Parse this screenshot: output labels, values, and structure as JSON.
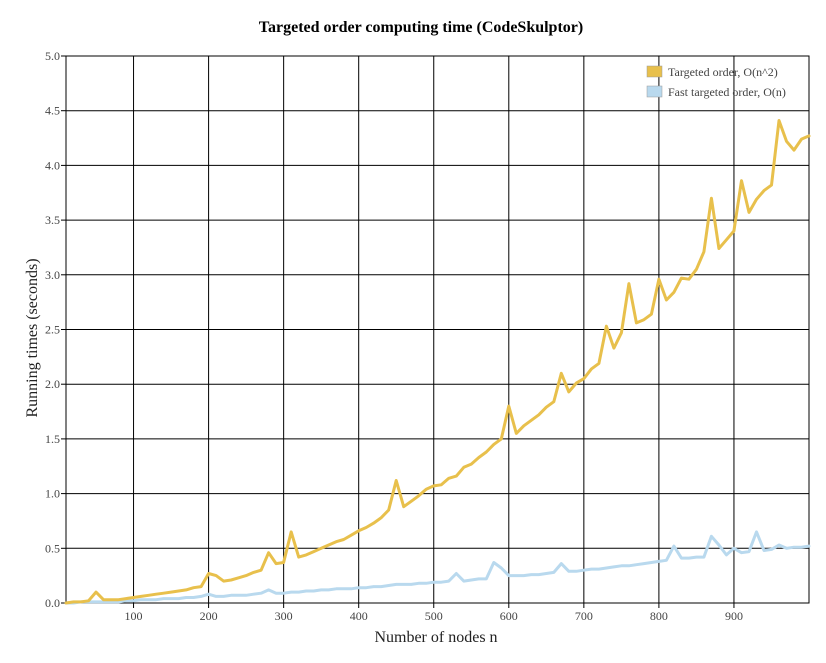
{
  "chart_data": {
    "type": "line",
    "title": "Targeted order computing time (CodeSkulptor)",
    "xlabel": "Number of nodes n",
    "ylabel": "Running times (seconds)",
    "xlim": [
      10,
      1000
    ],
    "ylim": [
      0,
      5
    ],
    "xticks": [
      100,
      200,
      300,
      400,
      500,
      600,
      700,
      800,
      900
    ],
    "xtick_labels": [
      "100",
      "200",
      "300",
      "400",
      "500",
      "600",
      "700",
      "800",
      "900"
    ],
    "yticks": [
      0,
      0.5,
      1,
      1.5,
      2,
      2.5,
      3,
      3.5,
      4,
      4.5,
      5
    ],
    "ytick_labels": [
      "0.0",
      "0.5",
      "1.0",
      "1.5",
      "2.0",
      "2.5",
      "3.0",
      "3.5",
      "4.0",
      "4.5",
      "5.0"
    ],
    "grid": true,
    "legend_position": "top-right",
    "x": [
      10,
      20,
      30,
      40,
      50,
      60,
      70,
      80,
      90,
      100,
      110,
      120,
      130,
      140,
      150,
      160,
      170,
      180,
      190,
      200,
      210,
      220,
      230,
      240,
      250,
      260,
      270,
      280,
      290,
      300,
      310,
      320,
      330,
      340,
      350,
      360,
      370,
      380,
      390,
      400,
      410,
      420,
      430,
      440,
      450,
      460,
      470,
      480,
      490,
      500,
      510,
      520,
      530,
      540,
      550,
      560,
      570,
      580,
      590,
      600,
      610,
      620,
      630,
      640,
      650,
      660,
      670,
      680,
      690,
      700,
      710,
      720,
      730,
      740,
      750,
      760,
      770,
      780,
      790,
      800,
      810,
      820,
      830,
      840,
      850,
      860,
      870,
      880,
      890,
      900,
      910,
      920,
      930,
      940,
      950,
      960,
      970,
      980,
      990,
      1000
    ],
    "series": [
      {
        "name": "Targeted order, O(n^2)",
        "color": "#e8c04c",
        "values": [
          0.0,
          0.01,
          0.01,
          0.02,
          0.1,
          0.03,
          0.03,
          0.03,
          0.04,
          0.05,
          0.06,
          0.07,
          0.08,
          0.09,
          0.1,
          0.11,
          0.12,
          0.14,
          0.15,
          0.27,
          0.25,
          0.2,
          0.21,
          0.23,
          0.25,
          0.28,
          0.3,
          0.46,
          0.36,
          0.37,
          0.65,
          0.42,
          0.44,
          0.47,
          0.5,
          0.53,
          0.56,
          0.58,
          0.62,
          0.66,
          0.69,
          0.73,
          0.78,
          0.85,
          1.12,
          0.88,
          0.93,
          0.98,
          1.04,
          1.07,
          1.08,
          1.14,
          1.16,
          1.24,
          1.27,
          1.33,
          1.38,
          1.45,
          1.5,
          1.8,
          1.55,
          1.62,
          1.67,
          1.72,
          1.79,
          1.84,
          2.1,
          1.93,
          2.01,
          2.05,
          2.14,
          2.19,
          2.53,
          2.33,
          2.47,
          2.92,
          2.56,
          2.59,
          2.64,
          2.96,
          2.77,
          2.84,
          2.97,
          2.96,
          3.05,
          3.21,
          3.7,
          3.24,
          3.32,
          3.4,
          3.86,
          3.57,
          3.69,
          3.77,
          3.82,
          4.41,
          4.22,
          4.14,
          4.24,
          4.27
        ]
      },
      {
        "name": "Fast targeted order, O(n)",
        "color": "#b9d9ee",
        "values": [
          0.0,
          0.0,
          0.01,
          0.01,
          0.01,
          0.01,
          0.01,
          0.01,
          0.02,
          0.02,
          0.03,
          0.03,
          0.03,
          0.04,
          0.04,
          0.04,
          0.05,
          0.05,
          0.06,
          0.08,
          0.06,
          0.06,
          0.07,
          0.07,
          0.07,
          0.08,
          0.09,
          0.12,
          0.09,
          0.09,
          0.1,
          0.1,
          0.11,
          0.11,
          0.12,
          0.12,
          0.13,
          0.13,
          0.13,
          0.14,
          0.14,
          0.15,
          0.15,
          0.16,
          0.17,
          0.17,
          0.17,
          0.18,
          0.18,
          0.19,
          0.19,
          0.2,
          0.27,
          0.2,
          0.21,
          0.22,
          0.22,
          0.37,
          0.32,
          0.25,
          0.25,
          0.25,
          0.26,
          0.26,
          0.27,
          0.28,
          0.36,
          0.29,
          0.29,
          0.3,
          0.31,
          0.31,
          0.32,
          0.33,
          0.34,
          0.34,
          0.35,
          0.36,
          0.37,
          0.38,
          0.39,
          0.52,
          0.41,
          0.41,
          0.42,
          0.42,
          0.61,
          0.53,
          0.44,
          0.5,
          0.46,
          0.47,
          0.65,
          0.48,
          0.49,
          0.53,
          0.5,
          0.51,
          0.51,
          0.52
        ]
      }
    ]
  }
}
